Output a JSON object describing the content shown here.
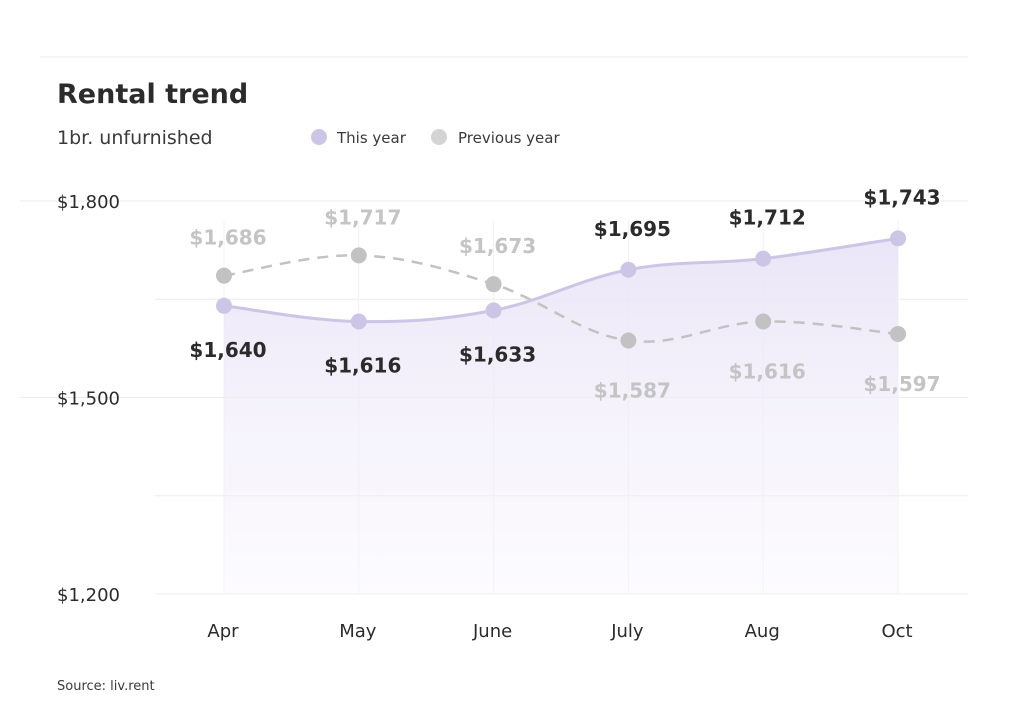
{
  "chart_data": {
    "type": "line",
    "title": "Rental trend",
    "subtitle": "1br. unfurnished",
    "categories": [
      "Apr",
      "May",
      "June",
      "July",
      "Aug",
      "Oct"
    ],
    "series": [
      {
        "name": "This year",
        "values": [
          1640,
          1616,
          1633,
          1695,
          1712,
          1743
        ],
        "labels": [
          "$1,640",
          "$1,616",
          "$1,633",
          "$1,695",
          "$1,712",
          "$1,743"
        ],
        "color": "#cdc5e6"
      },
      {
        "name": "Previous year",
        "values": [
          1686,
          1717,
          1673,
          1587,
          1616,
          1597
        ],
        "labels": [
          "$1,686",
          "$1,717",
          "$1,673",
          "$1,587",
          "$1,616",
          "$1,597"
        ],
        "color": "#c2c2c2"
      }
    ],
    "yticks": [
      "$1,800",
      "$1,500",
      "$1,200"
    ],
    "ytick_values": [
      1800,
      1500,
      1200
    ],
    "ylim": [
      1200,
      1800
    ],
    "grid": true,
    "legend_position": "top",
    "source": "Source: liv.rent"
  }
}
